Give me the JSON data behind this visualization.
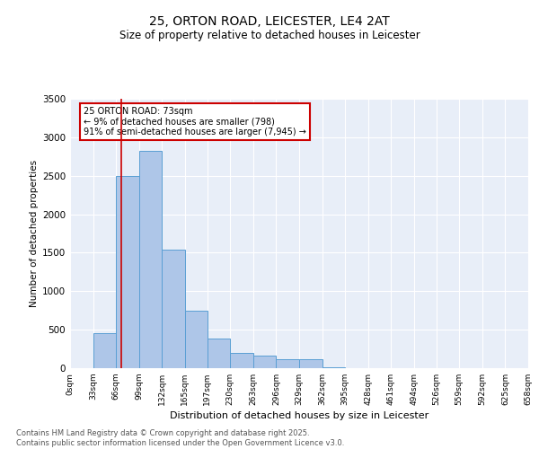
{
  "title_line1": "25, ORTON ROAD, LEICESTER, LE4 2AT",
  "title_line2": "Size of property relative to detached houses in Leicester",
  "xlabel": "Distribution of detached houses by size in Leicester",
  "ylabel": "Number of detached properties",
  "bin_edges": [
    0,
    33,
    66,
    99,
    132,
    165,
    197,
    230,
    263,
    296,
    329,
    362,
    395,
    428,
    461,
    494,
    526,
    559,
    592,
    625,
    658
  ],
  "bar_heights": [
    5,
    450,
    2500,
    2820,
    1540,
    750,
    380,
    200,
    160,
    120,
    120,
    10,
    0,
    0,
    0,
    0,
    0,
    0,
    0,
    0
  ],
  "bar_color": "#aec6e8",
  "bar_edge_color": "#5a9fd4",
  "bg_color": "#e8eef8",
  "grid_color": "#ffffff",
  "property_line_x": 73,
  "property_line_color": "#cc0000",
  "annotation_text": "25 ORTON ROAD: 73sqm\n← 9% of detached houses are smaller (798)\n91% of semi-detached houses are larger (7,945) →",
  "annotation_box_color": "#cc0000",
  "ylim": [
    0,
    3500
  ],
  "yticks": [
    0,
    500,
    1000,
    1500,
    2000,
    2500,
    3000,
    3500
  ],
  "footer_line1": "Contains HM Land Registry data © Crown copyright and database right 2025.",
  "footer_line2": "Contains public sector information licensed under the Open Government Licence v3.0."
}
